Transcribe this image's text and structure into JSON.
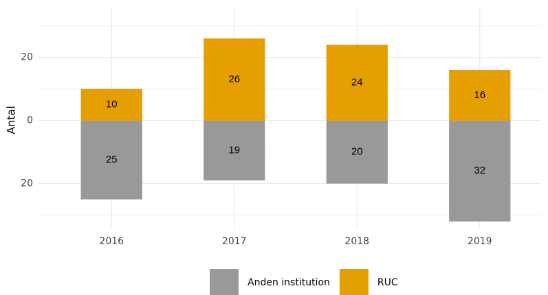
{
  "chart_data": {
    "type": "bar",
    "y_label": "Antal",
    "categories": [
      "2016",
      "2017",
      "2018",
      "2019"
    ],
    "series": [
      {
        "name": "Anden institution",
        "color": "#999999",
        "values": [
          -25,
          -19,
          -20,
          -32
        ],
        "value_labels": [
          "25",
          "19",
          "20",
          "32"
        ]
      },
      {
        "name": "RUC",
        "color": "#E69F00",
        "values": [
          10,
          26,
          24,
          16
        ]
      }
    ],
    "ylim": [
      -34,
      36
    ],
    "yticks": [
      {
        "value": -20,
        "label": "20"
      },
      0,
      20
    ],
    "minor_yticks": [
      -30,
      -10,
      10,
      30
    ],
    "grid": true,
    "legend": "bottom"
  }
}
